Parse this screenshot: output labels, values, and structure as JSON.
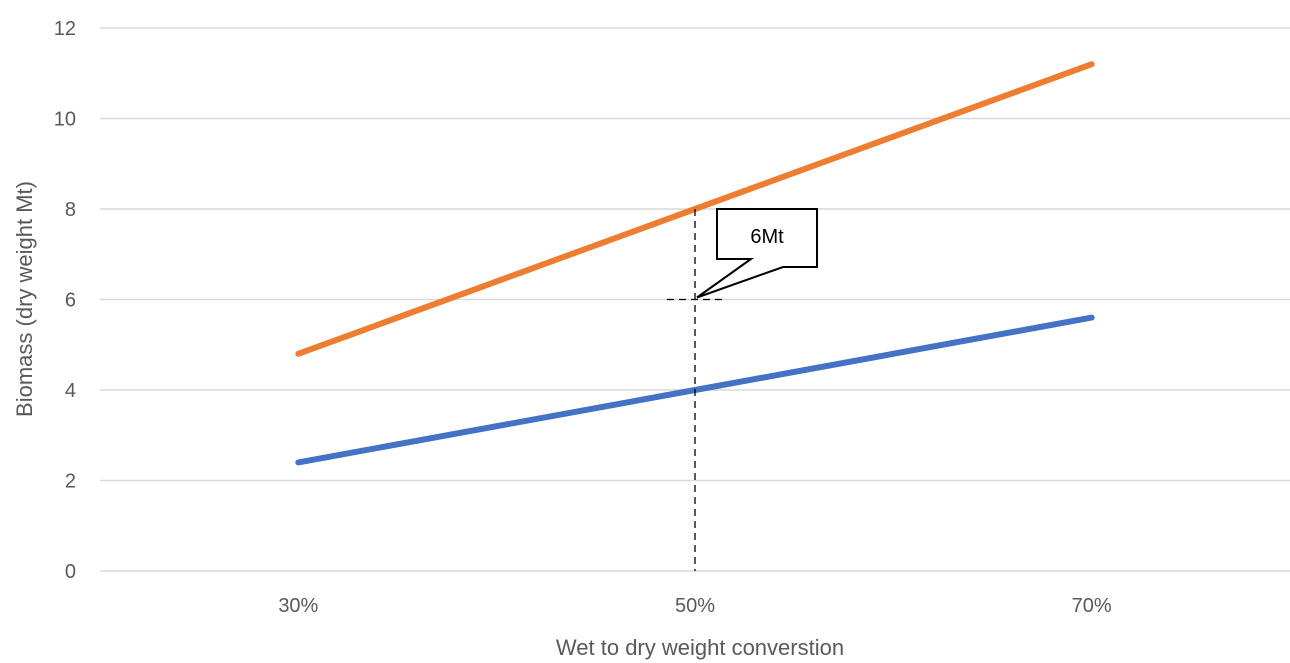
{
  "chart_data": {
    "type": "line",
    "title": "",
    "xlabel": "Wet to dry weight converstion",
    "ylabel": "Biomass (dry weight Mt)",
    "categories": [
      "30%",
      "50%",
      "70%"
    ],
    "ylim": [
      0,
      12
    ],
    "yticks": [
      "0",
      "2",
      "4",
      "6",
      "8",
      "10",
      "12"
    ],
    "grid": true,
    "legend": "none",
    "series": [
      {
        "color": "#4472C4",
        "values": [
          2.4,
          4.0,
          5.6
        ]
      },
      {
        "color": "#ED7D31",
        "values": [
          4.8,
          8.0,
          11.2
        ]
      }
    ],
    "annotation": {
      "text": "6Mt",
      "x": "50%",
      "y": 6,
      "guide_y_top": 8
    }
  }
}
